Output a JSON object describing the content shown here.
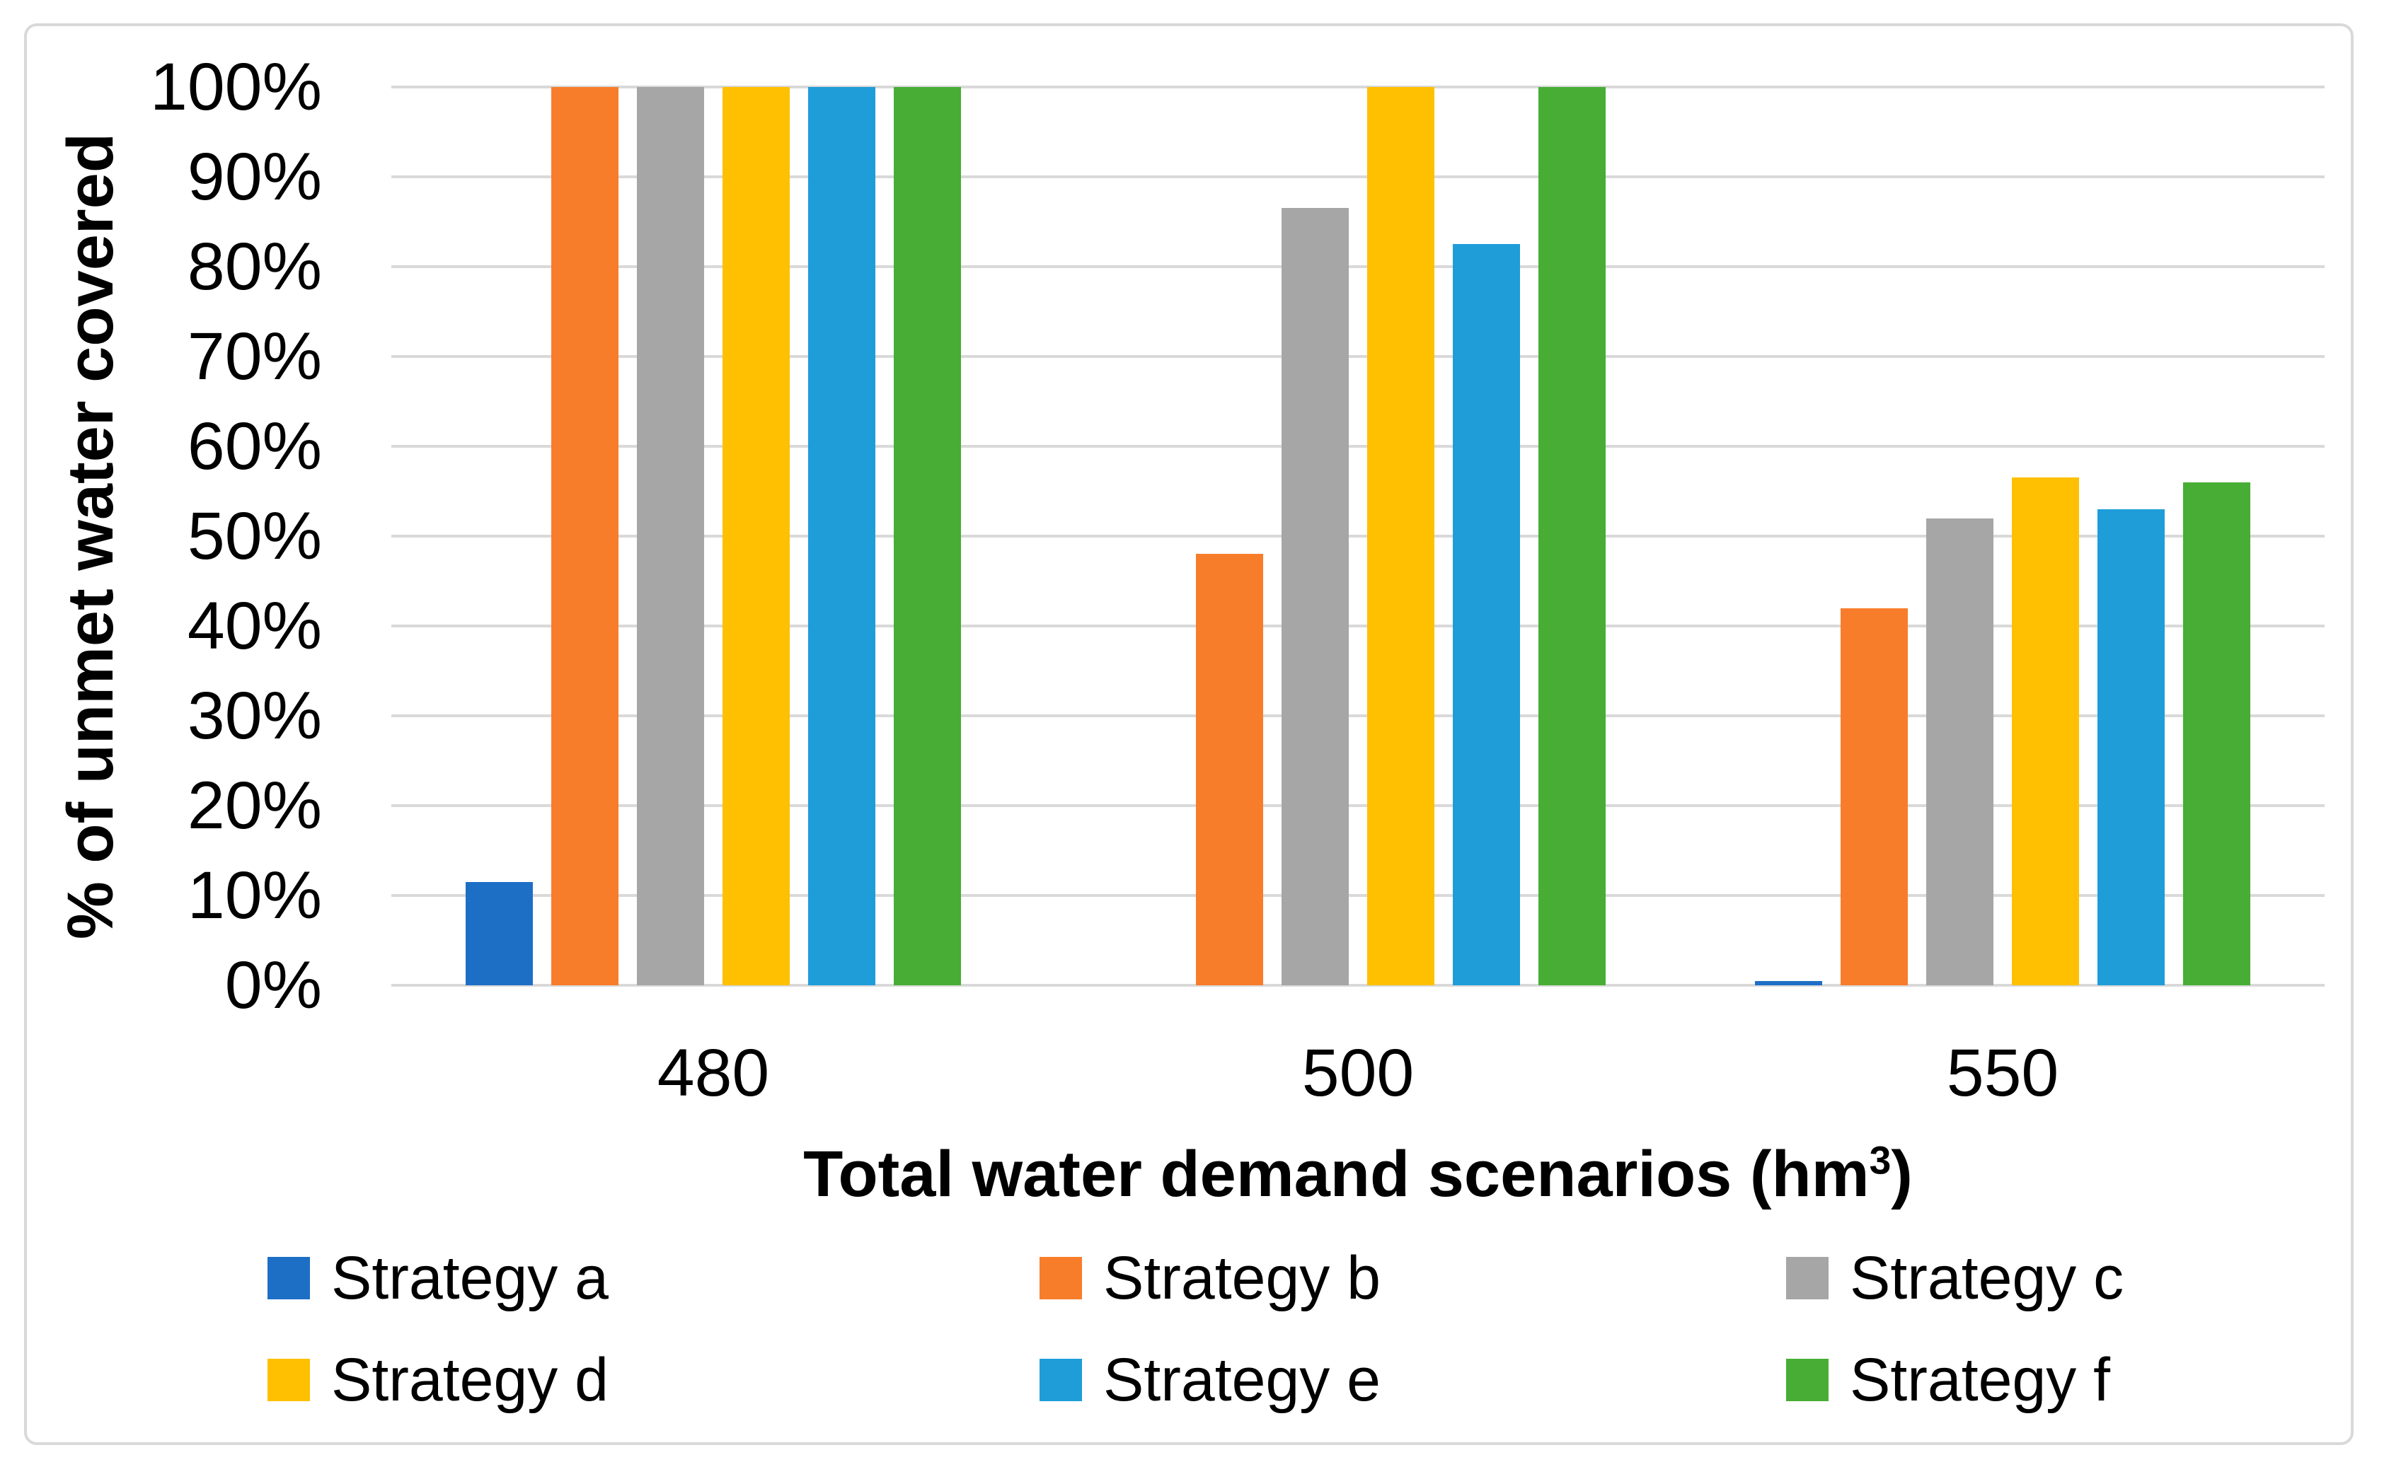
{
  "chart_data": {
    "type": "bar",
    "title": "",
    "categories": [
      "480",
      "500",
      "550"
    ],
    "series": [
      {
        "name": "Strategy a",
        "color": "#1D6FC6",
        "values": [
          11.5,
          0,
          0.5
        ]
      },
      {
        "name": "Strategy b",
        "color": "#F87D2B",
        "values": [
          100,
          48,
          42
        ]
      },
      {
        "name": "Strategy c",
        "color": "#A6A6A6",
        "values": [
          100,
          86.5,
          52
        ]
      },
      {
        "name": "Strategy d",
        "color": "#FEC001",
        "values": [
          100,
          100,
          56.5
        ]
      },
      {
        "name": "Strategy e",
        "color": "#1E9DD9",
        "values": [
          100,
          82.5,
          53
        ]
      },
      {
        "name": "Strategy f",
        "color": "#47AD35",
        "values": [
          100,
          100,
          56
        ]
      }
    ],
    "xlabel_base": "Total water demand scenarios (hm",
    "xlabel_sup": "3",
    "xlabel_close": ")",
    "ylabel": "% of unmet water covered",
    "ylim": [
      0,
      100
    ],
    "y_ticks": [
      "0%",
      "10%",
      "20%",
      "30%",
      "40%",
      "50%",
      "60%",
      "70%",
      "80%",
      "90%",
      "100%"
    ],
    "grid": "horizontal",
    "legend_position": "bottom",
    "gridline_color": "#D9D9D9",
    "frame_border_color": "#D9D9D9",
    "text_color": "#000000",
    "background_color": "#FFFFFF"
  }
}
